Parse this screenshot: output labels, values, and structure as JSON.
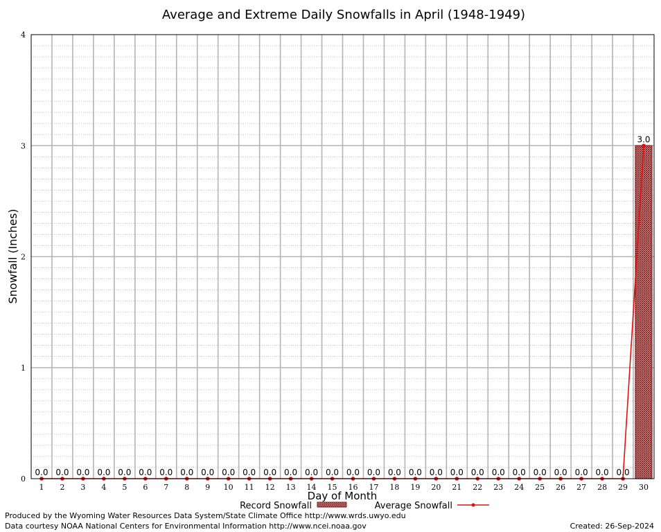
{
  "chart_data": {
    "type": "bar",
    "title": "Average and Extreme Daily Snowfalls in April (1948-1949)",
    "xlabel": "Day of Month",
    "ylabel": "Snowfall (Inches)",
    "ylim": [
      0,
      4
    ],
    "yticks": [
      0,
      1,
      2,
      3,
      4
    ],
    "categories": [
      "1",
      "2",
      "3",
      "4",
      "5",
      "6",
      "7",
      "8",
      "9",
      "10",
      "11",
      "12",
      "13",
      "14",
      "15",
      "16",
      "17",
      "18",
      "19",
      "20",
      "21",
      "22",
      "23",
      "24",
      "25",
      "26",
      "27",
      "28",
      "29",
      "30"
    ],
    "grid": true,
    "legend_position": "bottom",
    "series": [
      {
        "name": "Record Snowfall",
        "kind": "bar",
        "color": "#8b1a1a",
        "values": [
          0,
          0,
          0,
          0,
          0,
          0,
          0,
          0,
          0,
          0,
          0,
          0,
          0,
          0,
          0,
          0,
          0,
          0,
          0,
          0,
          0,
          0,
          0,
          0,
          0,
          0,
          0,
          0,
          0,
          3.0
        ],
        "labels": [
          "0.0",
          "0.0",
          "0.0",
          "0.0",
          "0.0",
          "0.0",
          "0.0",
          "0.0",
          "0.0",
          "0.0",
          "0.0",
          "0.0",
          "0.0",
          "0.0",
          "0.0",
          "0.0",
          "0.0",
          "0.0",
          "0.0",
          "0.0",
          "0.0",
          "0.0",
          "0.0",
          "0.0",
          "0.0",
          "0.0",
          "0.0",
          "0.0",
          "0.0",
          "3.0"
        ]
      },
      {
        "name": "Average Snowfall",
        "kind": "line",
        "color": "#e01010",
        "values": [
          0,
          0,
          0,
          0,
          0,
          0,
          0,
          0,
          0,
          0,
          0,
          0,
          0,
          0,
          0,
          0,
          0,
          0,
          0,
          0,
          0,
          0,
          0,
          0,
          0,
          0,
          0,
          0,
          0,
          3.0
        ]
      }
    ]
  },
  "footer": {
    "produced_by": "Produced by the Wyoming Water Resources Data System/State Climate Office http://www.wrds.uwyo.edu",
    "data_courtesy": "Data courtesy NOAA National Centers for Environmental Information http://www.ncei.noaa.gov",
    "created": "Created:  26-Sep-2024"
  }
}
